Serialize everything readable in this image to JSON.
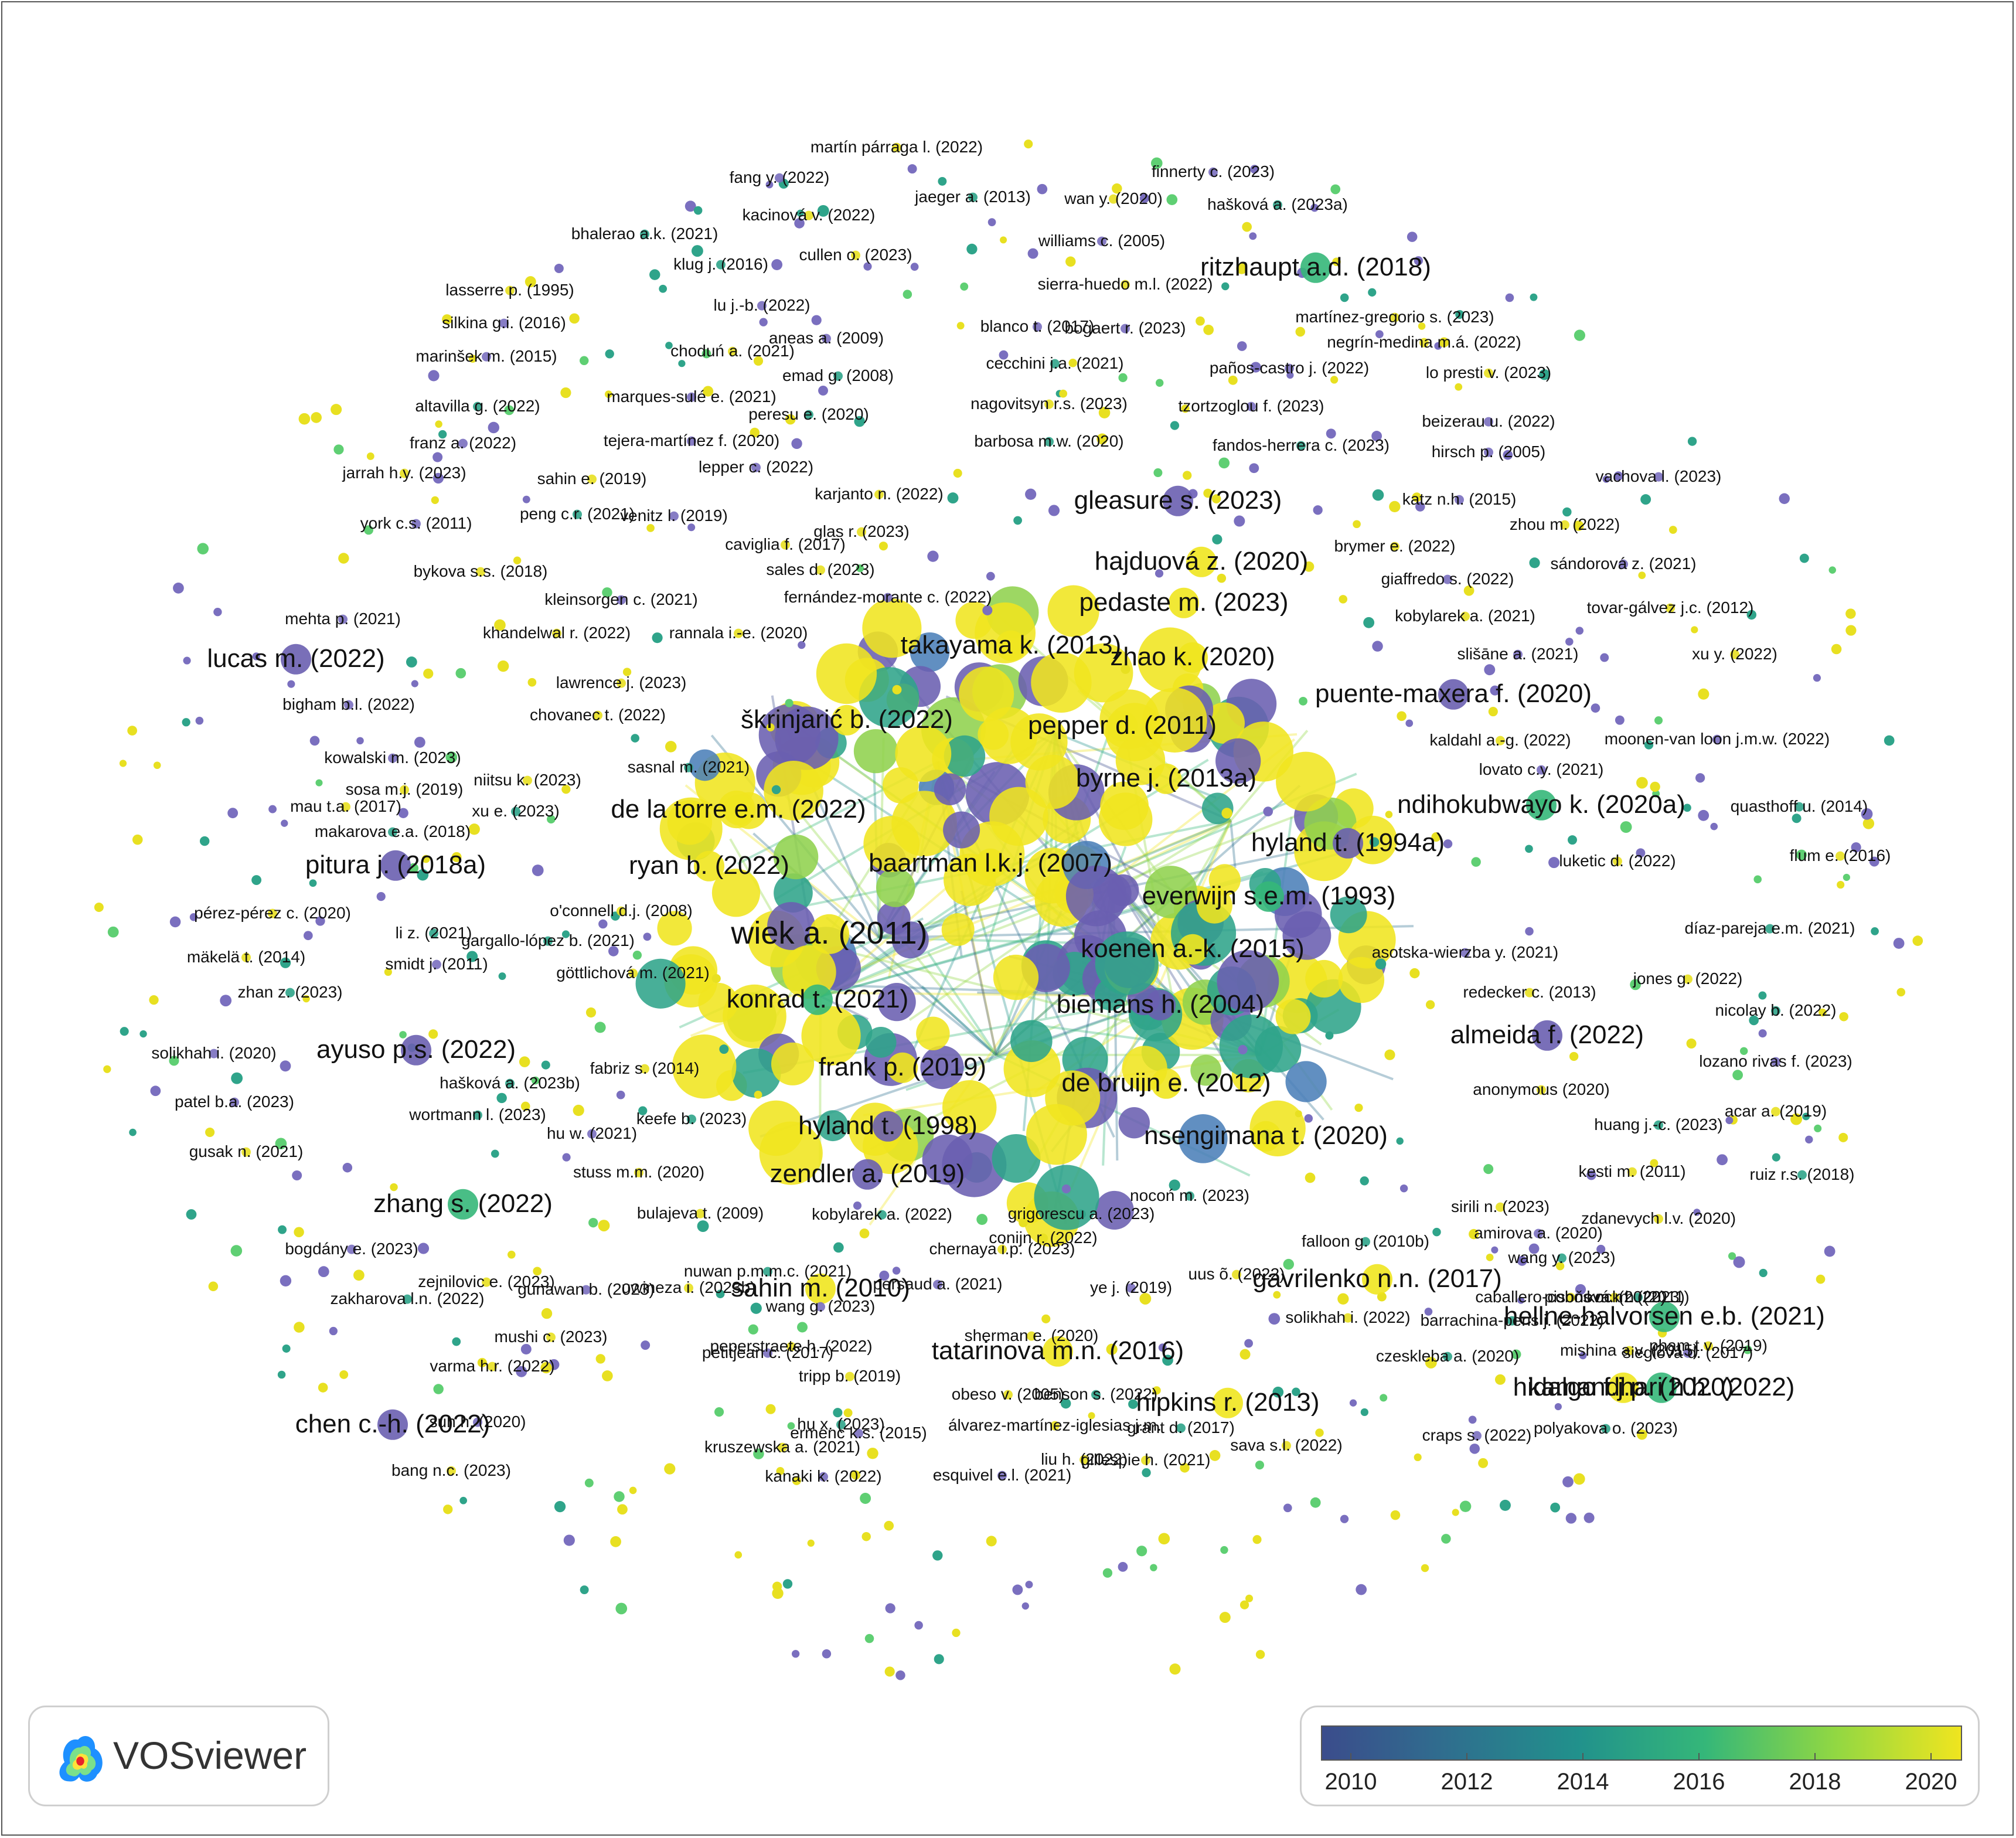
{
  "app": {
    "name": "VOSviewer",
    "logo_icon": "vosviewer-logo-icon"
  },
  "legend": {
    "colors": [
      "#3b4c8c",
      "#2f6f8e",
      "#21918c",
      "#35b779",
      "#90d743",
      "#f0e51f"
    ],
    "ticks": [
      "2010",
      "2012",
      "2014",
      "2016",
      "2018",
      "2020"
    ]
  },
  "labels": [
    {
      "t": "martín párraga l. (2022)",
      "s": "s"
    },
    {
      "t": "fang y. (2022)",
      "s": "s"
    },
    {
      "t": "finnerty c. (2023)",
      "s": "s"
    },
    {
      "t": "jaeger a. (2013)",
      "s": "s"
    },
    {
      "t": "wan y. (2020)",
      "s": "s"
    },
    {
      "t": "hašková a. (2023a)",
      "s": "s"
    },
    {
      "t": "kacinová v. (2022)",
      "s": "s"
    },
    {
      "t": "bhalerao a.k. (2021)",
      "s": "s"
    },
    {
      "t": "williams c. (2005)",
      "s": "s"
    },
    {
      "t": "cullen o. (2023)",
      "s": "s"
    },
    {
      "t": "ritzhaupt a.d. (2018)",
      "s": "l"
    },
    {
      "t": "klug j. (2016)",
      "s": "s"
    },
    {
      "t": "sierra-huedo m.l. (2022)",
      "s": "s"
    },
    {
      "t": "lasserre p. (1995)",
      "s": "s"
    },
    {
      "t": "lu j.-b. (2022)",
      "s": "s"
    },
    {
      "t": "martínez-gregorio s. (2023)",
      "s": "s"
    },
    {
      "t": "silkina g.i. (2016)",
      "s": "s"
    },
    {
      "t": "blanco t. (2017)",
      "s": "s"
    },
    {
      "t": "bogaert r. (2023)",
      "s": "s"
    },
    {
      "t": "aneas a. (2009)",
      "s": "s"
    },
    {
      "t": "negrín-medina m.á. (2022)",
      "s": "s"
    },
    {
      "t": "marinšek m. (2015)",
      "s": "s"
    },
    {
      "t": "choduń a. (2021)",
      "s": "s"
    },
    {
      "t": "cecchini j.a. (2021)",
      "s": "s"
    },
    {
      "t": "paños-castro j. (2022)",
      "s": "s"
    },
    {
      "t": "emad g. (2008)",
      "s": "s"
    },
    {
      "t": "lo presti v. (2023)",
      "s": "s"
    },
    {
      "t": "marques-sulé e. (2021)",
      "s": "s"
    },
    {
      "t": "altavilla g. (2022)",
      "s": "s"
    },
    {
      "t": "nagovitsyn r.s. (2023)",
      "s": "s"
    },
    {
      "t": "tzortzoglou f. (2023)",
      "s": "s"
    },
    {
      "t": "peresu e. (2020)",
      "s": "s"
    },
    {
      "t": "beizerau u. (2022)",
      "s": "s"
    },
    {
      "t": "franz a. (2022)",
      "s": "s"
    },
    {
      "t": "tejera-martínez f. (2020)",
      "s": "s"
    },
    {
      "t": "barbosa m.w. (2020)",
      "s": "s"
    },
    {
      "t": "fandos-herrera c. (2023)",
      "s": "s"
    },
    {
      "t": "hirsch p. (2005)",
      "s": "s"
    },
    {
      "t": "lepper c. (2022)",
      "s": "s"
    },
    {
      "t": "jarrah h.y. (2023)",
      "s": "s"
    },
    {
      "t": "sahin e. (2019)",
      "s": "s"
    },
    {
      "t": "vachova l. (2023)",
      "s": "s"
    },
    {
      "t": "karjanto n. (2022)",
      "s": "s"
    },
    {
      "t": "gleasure s. (2023)",
      "s": "l"
    },
    {
      "t": "katz n.h. (2015)",
      "s": "s"
    },
    {
      "t": "peng c.r. (2021)",
      "s": "s"
    },
    {
      "t": "venitz l. (2019)",
      "s": "s"
    },
    {
      "t": "york c.s. (2011)",
      "s": "s"
    },
    {
      "t": "glas r. (2023)",
      "s": "s"
    },
    {
      "t": "zhou m. (2022)",
      "s": "s"
    },
    {
      "t": "caviglia f. (2017)",
      "s": "s"
    },
    {
      "t": "brymer e. (2022)",
      "s": "s"
    },
    {
      "t": "hajduová z. (2020)",
      "s": "l"
    },
    {
      "t": "bykova s.s. (2018)",
      "s": "s"
    },
    {
      "t": "sales d. (2023)",
      "s": "s"
    },
    {
      "t": "sándorová z. (2021)",
      "s": "s"
    },
    {
      "t": "giaffredo s. (2022)",
      "s": "s"
    },
    {
      "t": "kleinsorgen c. (2021)",
      "s": "s"
    },
    {
      "t": "fernández-morante c. (2022)",
      "s": "s"
    },
    {
      "t": "pedaste m. (2023)",
      "s": "l"
    },
    {
      "t": "tovar-gálvez j.c. (2012)",
      "s": "s"
    },
    {
      "t": "mehta p. (2021)",
      "s": "s"
    },
    {
      "t": "kobylarek a. (2021)",
      "s": "s"
    },
    {
      "t": "khandelwal r. (2022)",
      "s": "s"
    },
    {
      "t": "rannala i.-e. (2020)",
      "s": "s"
    },
    {
      "t": "takayama k. (2013)",
      "s": "l"
    },
    {
      "t": "lucas m. (2022)",
      "s": "l"
    },
    {
      "t": "zhao k. (2020)",
      "s": "l"
    },
    {
      "t": "slišāne a. (2021)",
      "s": "s"
    },
    {
      "t": "xu y. (2022)",
      "s": "s"
    },
    {
      "t": "lawrence j. (2023)",
      "s": "s"
    },
    {
      "t": "puente-maxera f. (2020)",
      "s": "l"
    },
    {
      "t": "bigham b.l. (2022)",
      "s": "s"
    },
    {
      "t": "chovanec t. (2022)",
      "s": "s"
    },
    {
      "t": "škrinjarić b. (2022)",
      "s": "l"
    },
    {
      "t": "pepper d. (2011)",
      "s": "l"
    },
    {
      "t": "kaldahl a.-g. (2022)",
      "s": "s"
    },
    {
      "t": "moonen-van loon j.m.w. (2022)",
      "s": "s"
    },
    {
      "t": "kowalski m. (2023)",
      "s": "s"
    },
    {
      "t": "sasnal m. (2021)",
      "s": "s"
    },
    {
      "t": "lovato c.y. (2021)",
      "s": "s"
    },
    {
      "t": "sosa m.j. (2019)",
      "s": "s"
    },
    {
      "t": "niitsu k. (2023)",
      "s": "s"
    },
    {
      "t": "byrne j. (2013a)",
      "s": "l"
    },
    {
      "t": "mau t.a. (2017)",
      "s": "s"
    },
    {
      "t": "xu e. (2023)",
      "s": "s"
    },
    {
      "t": "ndihokubwayo k. (2020a)",
      "s": "l"
    },
    {
      "t": "quasthoff u. (2014)",
      "s": "s"
    },
    {
      "t": "de la torre e.m. (2022)",
      "s": "l"
    },
    {
      "t": "makarova e.a. (2018)",
      "s": "s"
    },
    {
      "t": "hyland t. (1994a)",
      "s": "l"
    },
    {
      "t": "flum e. (2016)",
      "s": "s"
    },
    {
      "t": "luketic d. (2022)",
      "s": "s"
    },
    {
      "t": "pitura j. (2018a)",
      "s": "l"
    },
    {
      "t": "ryan b. (2022)",
      "s": "l"
    },
    {
      "t": "baartman l.k.j. (2007)",
      "s": "l"
    },
    {
      "t": "everwijn s.e.m. (1993)",
      "s": "l"
    },
    {
      "t": "pérez-pérez c. (2020)",
      "s": "s"
    },
    {
      "t": "o'connell d.j. (2008)",
      "s": "s"
    },
    {
      "t": "wiek a. (2011)",
      "s": "xl"
    },
    {
      "t": "díaz-pareja e.m. (2021)",
      "s": "s"
    },
    {
      "t": "li z. (2021)",
      "s": "s"
    },
    {
      "t": "gargallo-lópez b. (2021)",
      "s": "s"
    },
    {
      "t": "mäkelä t. (2014)",
      "s": "s"
    },
    {
      "t": "smidt j. (2011)",
      "s": "s"
    },
    {
      "t": "koenen a.-k. (2015)",
      "s": "l"
    },
    {
      "t": "asotska-wierzba y. (2021)",
      "s": "s"
    },
    {
      "t": "göttlichová m. (2021)",
      "s": "s"
    },
    {
      "t": "jones g. (2022)",
      "s": "s"
    },
    {
      "t": "zhan z. (2023)",
      "s": "s"
    },
    {
      "t": "redecker c. (2013)",
      "s": "s"
    },
    {
      "t": "konrad t. (2021)",
      "s": "l"
    },
    {
      "t": "biemans h. (2004)",
      "s": "l"
    },
    {
      "t": "nicolay b. (2022)",
      "s": "s"
    },
    {
      "t": "ayuso p.s. (2022)",
      "s": "l"
    },
    {
      "t": "almeida f. (2022)",
      "s": "l"
    },
    {
      "t": "solikhah i. (2020)",
      "s": "s"
    },
    {
      "t": "lozano rivas f. (2023)",
      "s": "s"
    },
    {
      "t": "fabriz s. (2014)",
      "s": "s"
    },
    {
      "t": "frank p. (2019)",
      "s": "l"
    },
    {
      "t": "hašková a. (2023b)",
      "s": "s"
    },
    {
      "t": "de bruijn e. (2012)",
      "s": "l"
    },
    {
      "t": "anonymous (2020)",
      "s": "s"
    },
    {
      "t": "patel b.a. (2023)",
      "s": "s"
    },
    {
      "t": "acar a. (2019)",
      "s": "s"
    },
    {
      "t": "wortmann l. (2023)",
      "s": "s"
    },
    {
      "t": "keefe b. (2023)",
      "s": "s"
    },
    {
      "t": "hyland t. (1998)",
      "s": "l"
    },
    {
      "t": "huang j.-c. (2023)",
      "s": "s"
    },
    {
      "t": "hu w. (2021)",
      "s": "s"
    },
    {
      "t": "nsengimana t. (2020)",
      "s": "l"
    },
    {
      "t": "gusak n. (2021)",
      "s": "s"
    },
    {
      "t": "stuss m.m. (2020)",
      "s": "s"
    },
    {
      "t": "zendler a. (2019)",
      "s": "l"
    },
    {
      "t": "kesti m. (2011)",
      "s": "s"
    },
    {
      "t": "nocoń m. (2023)",
      "s": "s"
    },
    {
      "t": "ruiz r.s. (2018)",
      "s": "s"
    },
    {
      "t": "zhang s. (2022)",
      "s": "l"
    },
    {
      "t": "sirili n. (2023)",
      "s": "s"
    },
    {
      "t": "bulajeva t. (2009)",
      "s": "s"
    },
    {
      "t": "kobylarek a. (2022)",
      "s": "s"
    },
    {
      "t": "zdanevych l.v. (2020)",
      "s": "s"
    },
    {
      "t": "amirova a. (2020)",
      "s": "s"
    },
    {
      "t": "bogdány e. (2023)",
      "s": "s"
    },
    {
      "t": "grigorescu a. (2023)",
      "s": "s"
    },
    {
      "t": "falloon g. (2010b)",
      "s": "s"
    },
    {
      "t": "conijn r. (2022)",
      "s": "s"
    },
    {
      "t": "nuwan p.m.m.c. (2021)",
      "s": "s"
    },
    {
      "t": "chernaya i.p. (2023)",
      "s": "s"
    },
    {
      "t": "wang y. (2023)",
      "s": "s"
    },
    {
      "t": "zejnilovic e. (2023)",
      "s": "s"
    },
    {
      "t": "uwineza i. (2023b)",
      "s": "s"
    },
    {
      "t": "persaud a. (2021)",
      "s": "s"
    },
    {
      "t": "uus õ. (2022)",
      "s": "s"
    },
    {
      "t": "gavrilenko n.n. (2017)",
      "s": "l"
    },
    {
      "t": "kock h. (2011)",
      "s": "s"
    },
    {
      "t": "sahin m. (2010)",
      "s": "l"
    },
    {
      "t": "pisoňová m. (2023)",
      "s": "s"
    },
    {
      "t": "gunawan b. (2023)",
      "s": "s"
    },
    {
      "t": "ye j. (2019)",
      "s": "s"
    },
    {
      "t": "caballero-cobos m. (2022)",
      "s": "s"
    },
    {
      "t": "zakharova l.n. (2022)",
      "s": "s"
    },
    {
      "t": "solikhah i. (2022)",
      "s": "s"
    },
    {
      "t": "barrachina-peris j. (2022)",
      "s": "s"
    },
    {
      "t": "wang g. (2023)",
      "s": "s"
    },
    {
      "t": "hellne-halvorsen e.b. (2021)",
      "s": "l"
    },
    {
      "t": "petitjean c. (2017)",
      "s": "s"
    },
    {
      "t": "pham t.v. (2019)",
      "s": "s"
    },
    {
      "t": "tatarinova m.n. (2016)",
      "s": "l"
    },
    {
      "t": "peperstraete h. (2022)",
      "s": "s"
    },
    {
      "t": "mishina a.v. (2015)",
      "s": "s"
    },
    {
      "t": "czeskleba a. (2020)",
      "s": "s"
    },
    {
      "t": "mushi c. (2023)",
      "s": "s"
    },
    {
      "t": "sherman e. (2020)",
      "s": "s"
    },
    {
      "t": "sieglová d. (2017)",
      "s": "s"
    },
    {
      "t": "varma h.r. (2022)",
      "s": "s"
    },
    {
      "t": "tripp b. (2019)",
      "s": "s"
    },
    {
      "t": "kamandhari h.h. (2022)",
      "s": "l"
    },
    {
      "t": "benson s. (2022)",
      "s": "s"
    },
    {
      "t": "obeso v. (2005)",
      "s": "s"
    },
    {
      "t": "hidalgo f.j.p. (2020)",
      "s": "l"
    },
    {
      "t": "ermenc k.s. (2015)",
      "s": "s"
    },
    {
      "t": "hipkins r. (2013)",
      "s": "l"
    },
    {
      "t": "suh h. (2020)",
      "s": "s"
    },
    {
      "t": "polyakova o. (2023)",
      "s": "s"
    },
    {
      "t": "hu x. (2023)",
      "s": "s"
    },
    {
      "t": "álvarez-martínez-iglesias j.m.",
      "s": "s"
    },
    {
      "t": "grant d. (2017)",
      "s": "s"
    },
    {
      "t": "chen c.-h. (2022)",
      "s": "l"
    },
    {
      "t": "sava s.l. (2022)",
      "s": "s"
    },
    {
      "t": "kruszewska a. (2021)",
      "s": "s"
    },
    {
      "t": "liu h. (2022)",
      "s": "s"
    },
    {
      "t": "gillespie h. (2021)",
      "s": "s"
    },
    {
      "t": "kanaki k. (2022)",
      "s": "s"
    },
    {
      "t": "craps s. (2022)",
      "s": "s"
    },
    {
      "t": "esquivel e.l. (2021)",
      "s": "s"
    },
    {
      "t": "bang n.c. (2023)",
      "s": "s"
    }
  ]
}
